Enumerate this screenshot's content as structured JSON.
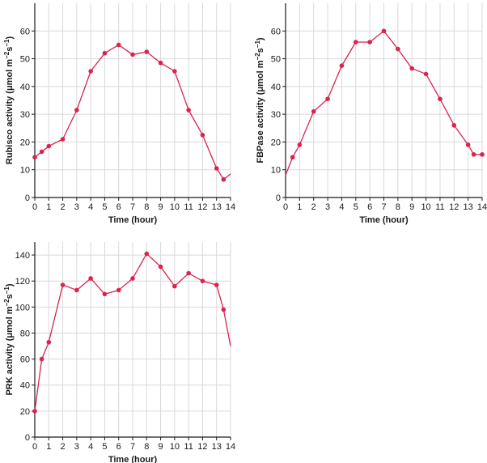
{
  "chart_data": [
    {
      "type": "line",
      "ylabel_main": "Rubisco activity (μmol m",
      "ylabel_sup1": "−2",
      "ylabel_mid": "s",
      "ylabel_sup2": "−1",
      "ylabel_end": ")",
      "xlabel": "Time (hour)",
      "xlim": [
        0,
        14
      ],
      "ylim": [
        0,
        70
      ],
      "xticks": [
        "0",
        "1",
        "2",
        "3",
        "4",
        "5",
        "6",
        "7",
        "8",
        "9",
        "10",
        "11",
        "12",
        "13",
        "14"
      ],
      "yticks": [
        "0",
        "10",
        "20",
        "30",
        "40",
        "50",
        "60"
      ],
      "line_color": "#d8244f",
      "points": [
        {
          "x": 0,
          "y": 14.5
        },
        {
          "x": 0.5,
          "y": 16.5
        },
        {
          "x": 1,
          "y": 18.5
        },
        {
          "x": 2,
          "y": 21
        },
        {
          "x": 3,
          "y": 31.5
        },
        {
          "x": 4,
          "y": 45.5
        },
        {
          "x": 5,
          "y": 52
        },
        {
          "x": 6,
          "y": 55
        },
        {
          "x": 7,
          "y": 51.5
        },
        {
          "x": 8,
          "y": 52.5
        },
        {
          "x": 9,
          "y": 48.5
        },
        {
          "x": 10,
          "y": 45.5
        },
        {
          "x": 11,
          "y": 31.5
        },
        {
          "x": 12,
          "y": 22.5
        },
        {
          "x": 13,
          "y": 10.5
        },
        {
          "x": 13.5,
          "y": 6.5
        }
      ],
      "tail": [
        {
          "x": 13.5,
          "y": 6.5
        },
        {
          "x": 14,
          "y": 8.5
        }
      ]
    },
    {
      "type": "line",
      "ylabel_main": "FBPase activity (μmol m",
      "ylabel_sup1": "−2",
      "ylabel_mid": "s",
      "ylabel_sup2": "−1",
      "ylabel_end": ")",
      "xlabel": "Time (hour)",
      "xlim": [
        0,
        14
      ],
      "ylim": [
        0,
        70
      ],
      "xticks": [
        "0",
        "1",
        "2",
        "3",
        "4",
        "5",
        "6",
        "7",
        "8",
        "9",
        "10",
        "11",
        "12",
        "13",
        "14"
      ],
      "yticks": [
        "0",
        "10",
        "20",
        "30",
        "40",
        "50",
        "60"
      ],
      "line_color": "#d8244f",
      "head": [
        {
          "x": 0,
          "y": 8
        },
        {
          "x": 0.5,
          "y": 14.5
        }
      ],
      "points": [
        {
          "x": 0.5,
          "y": 14.5
        },
        {
          "x": 1,
          "y": 19
        },
        {
          "x": 2,
          "y": 31
        },
        {
          "x": 3,
          "y": 35.5
        },
        {
          "x": 4,
          "y": 47.5
        },
        {
          "x": 5,
          "y": 56
        },
        {
          "x": 6,
          "y": 56
        },
        {
          "x": 7,
          "y": 60
        },
        {
          "x": 8,
          "y": 53.5
        },
        {
          "x": 9,
          "y": 46.5
        },
        {
          "x": 10,
          "y": 44.5
        },
        {
          "x": 11,
          "y": 35.5
        },
        {
          "x": 12,
          "y": 26
        },
        {
          "x": 13,
          "y": 19
        },
        {
          "x": 13.4,
          "y": 15.5
        },
        {
          "x": 14,
          "y": 15.5
        }
      ]
    },
    {
      "type": "line",
      "ylabel_main": "PRK activity (μmol m",
      "ylabel_sup1": "−2",
      "ylabel_mid": "s",
      "ylabel_sup2": "−1",
      "ylabel_end": ")",
      "xlabel": "Time (hour)",
      "xlim": [
        0,
        14
      ],
      "ylim": [
        0,
        150
      ],
      "xticks": [
        "0",
        "1",
        "2",
        "3",
        "4",
        "5",
        "6",
        "7",
        "8",
        "9",
        "10",
        "11",
        "12",
        "13",
        "14"
      ],
      "yticks": [
        "0",
        "20",
        "40",
        "60",
        "80",
        "100",
        "120",
        "140"
      ],
      "line_color": "#d8244f",
      "points": [
        {
          "x": 0,
          "y": 20
        },
        {
          "x": 0.5,
          "y": 60
        },
        {
          "x": 1,
          "y": 73
        },
        {
          "x": 2,
          "y": 117
        },
        {
          "x": 3,
          "y": 113
        },
        {
          "x": 4,
          "y": 122
        },
        {
          "x": 5,
          "y": 110
        },
        {
          "x": 6,
          "y": 113
        },
        {
          "x": 7,
          "y": 122
        },
        {
          "x": 8,
          "y": 141
        },
        {
          "x": 9,
          "y": 131
        },
        {
          "x": 10,
          "y": 116
        },
        {
          "x": 11,
          "y": 126
        },
        {
          "x": 12,
          "y": 120
        },
        {
          "x": 13,
          "y": 117
        },
        {
          "x": 13.5,
          "y": 98
        }
      ],
      "tail": [
        {
          "x": 13.5,
          "y": 98
        },
        {
          "x": 14,
          "y": 70
        }
      ]
    }
  ]
}
